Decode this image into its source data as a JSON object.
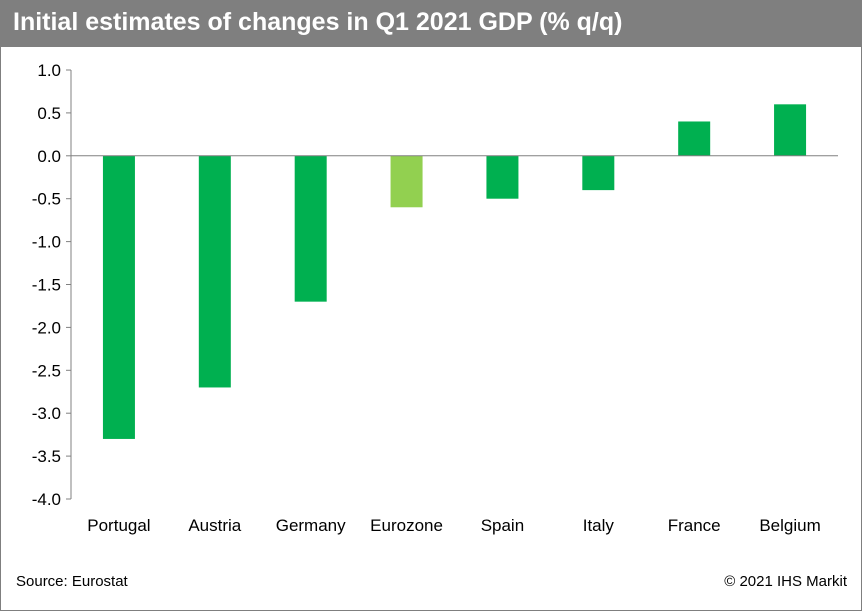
{
  "header": {
    "title": "Initial estimates of changes in Q1 2021 GDP (% q/q)"
  },
  "footer": {
    "source": "Source: Eurostat",
    "copyright": "© 2021 IHS Markit"
  },
  "colors": {
    "bar": "#00b050",
    "highlight": "#92d050",
    "title_bg": "#7f7f7f"
  },
  "chart_data": {
    "type": "bar",
    "title": "Initial estimates of changes in Q1 2021 GDP (% q/q)",
    "categories": [
      "Portugal",
      "Austria",
      "Germany",
      "Eurozone",
      "Spain",
      "Italy",
      "France",
      "Belgium"
    ],
    "values": [
      -3.3,
      -2.7,
      -1.7,
      -0.6,
      -0.5,
      -0.4,
      0.4,
      0.6
    ],
    "highlight_category": "Eurozone",
    "ylim": [
      -4.0,
      1.0
    ],
    "yticks": [
      "1.0",
      "0.5",
      "0.0",
      "-0.5",
      "-1.0",
      "-1.5",
      "-2.0",
      "-2.5",
      "-3.0",
      "-3.5",
      "-4.0"
    ],
    "xlabel": "",
    "ylabel": "",
    "grid": false,
    "legend": "none"
  }
}
